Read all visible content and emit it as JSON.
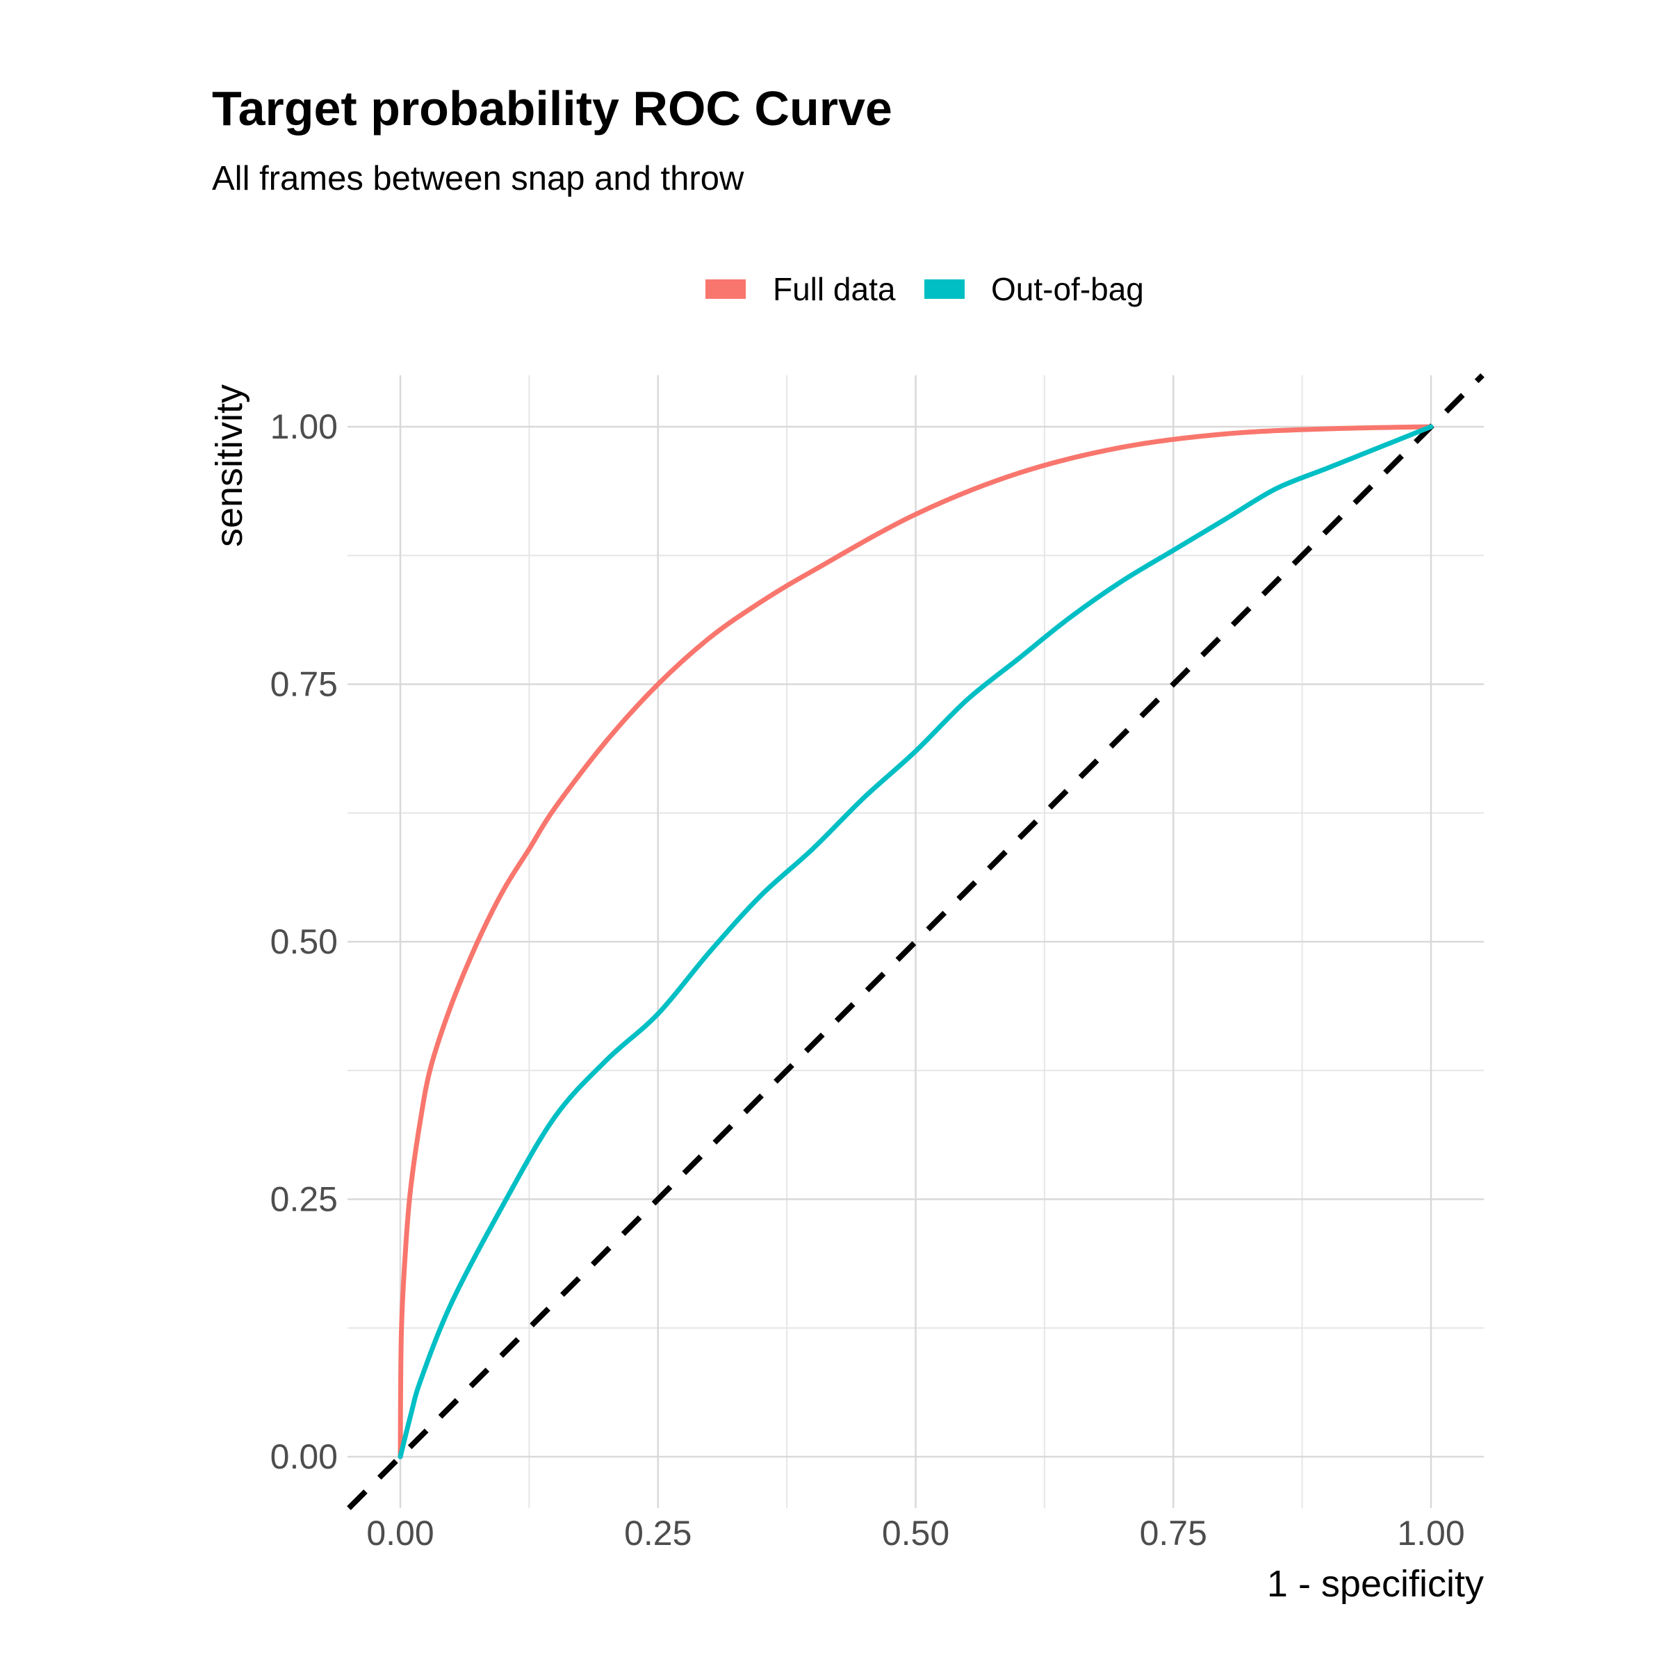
{
  "chart_data": {
    "type": "line",
    "title": "Target probability ROC Curve",
    "subtitle": "All frames between snap and throw",
    "xlabel": "1 - specificity",
    "ylabel": "sensitivity",
    "xlim": [
      -0.1,
      1.1
    ],
    "ylim": [
      -0.05,
      1.05
    ],
    "x_ticks": [
      "0.00",
      "0.25",
      "0.50",
      "0.75",
      "1.00"
    ],
    "y_ticks": [
      "0.00",
      "0.25",
      "0.50",
      "0.75",
      "1.00"
    ],
    "grid": true,
    "legend_position": "top",
    "series": [
      {
        "name": "Full data",
        "color": "#F8766D",
        "x": [
          0,
          0.001,
          0.005,
          0.01,
          0.02,
          0.03,
          0.05,
          0.075,
          0.1,
          0.125,
          0.15,
          0.2,
          0.25,
          0.3,
          0.35,
          0.4,
          0.5,
          0.6,
          0.7,
          0.8,
          0.9,
          1.0
        ],
        "y": [
          0,
          0.12,
          0.2,
          0.26,
          0.33,
          0.38,
          0.44,
          0.5,
          0.55,
          0.59,
          0.63,
          0.695,
          0.75,
          0.795,
          0.83,
          0.86,
          0.915,
          0.955,
          0.98,
          0.993,
          0.998,
          1.0
        ]
      },
      {
        "name": "Out-of-bag",
        "color": "#00BFC4",
        "x": [
          0,
          0.01,
          0.02,
          0.05,
          0.1,
          0.15,
          0.2,
          0.25,
          0.3,
          0.35,
          0.4,
          0.45,
          0.5,
          0.55,
          0.6,
          0.65,
          0.7,
          0.75,
          0.8,
          0.85,
          0.9,
          0.95,
          1.0
        ],
        "y": [
          0,
          0.04,
          0.075,
          0.15,
          0.245,
          0.33,
          0.385,
          0.43,
          0.49,
          0.545,
          0.59,
          0.64,
          0.685,
          0.735,
          0.775,
          0.815,
          0.85,
          0.88,
          0.91,
          0.94,
          0.96,
          0.98,
          1.0
        ]
      }
    ],
    "reference_line": {
      "x": [
        -0.1,
        1.1
      ],
      "y": [
        -0.1,
        1.1
      ],
      "color": "#000000",
      "style": "dashed"
    }
  }
}
